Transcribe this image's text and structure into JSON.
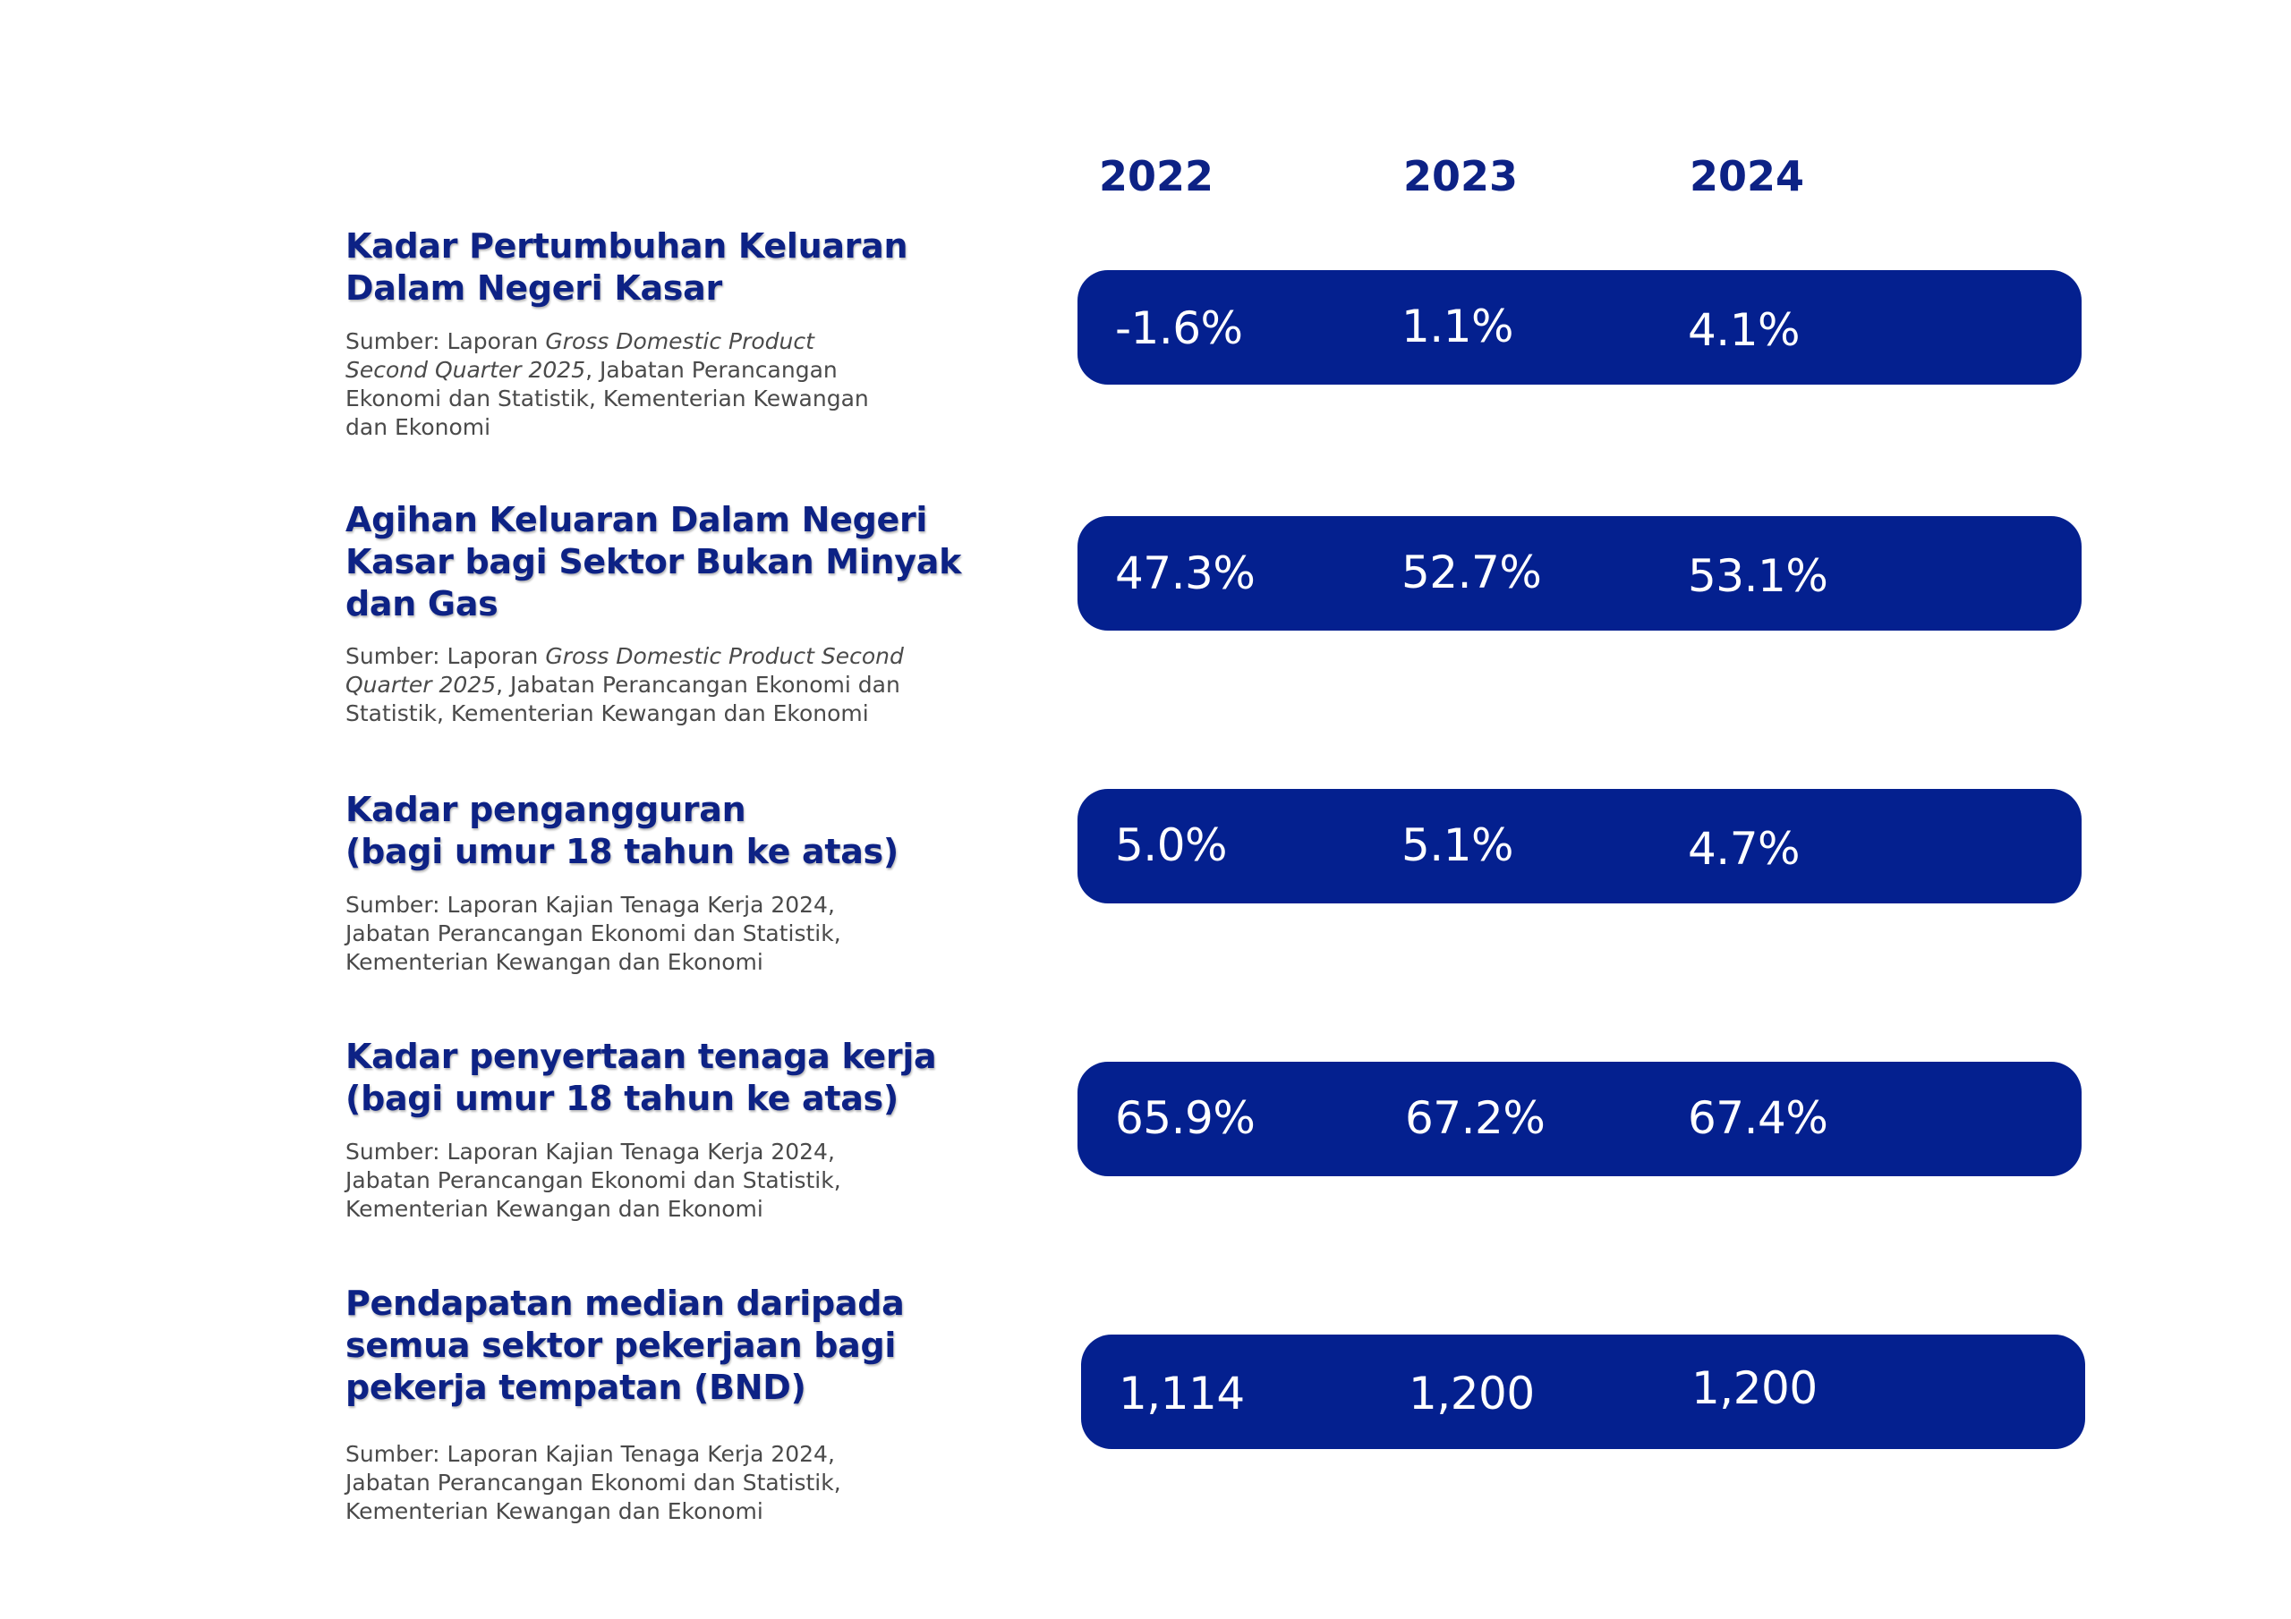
{
  "years": [
    "2022",
    "2023",
    "2024"
  ],
  "rows": [
    {
      "title_lines": [
        "Kadar Pertumbuhan Keluaran",
        "Dalam Negeri Kasar"
      ],
      "source_lines": [
        [
          "Sumber: Laporan ",
          "Gross Domestic Product",
          ""
        ],
        [
          "",
          "Second Quarter 2025",
          ", Jabatan Perancangan"
        ],
        [
          "Ekonomi dan Statistik, Kementerian Kewangan",
          "",
          ""
        ],
        [
          "dan Ekonomi",
          "",
          ""
        ]
      ],
      "values": [
        "-1.6%",
        "1.1%",
        "4.1%"
      ]
    },
    {
      "title_lines": [
        "Agihan Keluaran Dalam Negeri",
        "Kasar bagi Sektor Bukan Minyak",
        "dan Gas"
      ],
      "source_lines": [
        [
          "Sumber: Laporan ",
          "Gross Domestic Product Second",
          ""
        ],
        [
          "",
          "Quarter 2025",
          ", Jabatan Perancangan Ekonomi dan"
        ],
        [
          "Statistik, Kementerian Kewangan dan Ekonomi",
          "",
          ""
        ]
      ],
      "values": [
        "47.3%",
        "52.7%",
        "53.1%"
      ]
    },
    {
      "title_lines": [
        "Kadar pengangguran",
        "(bagi umur 18 tahun ke atas)"
      ],
      "source_lines": [
        [
          "Sumber: Laporan Kajian Tenaga Kerja 2024,",
          "",
          ""
        ],
        [
          "Jabatan Perancangan Ekonomi dan Statistik,",
          "",
          ""
        ],
        [
          "Kementerian Kewangan dan Ekonomi",
          "",
          ""
        ]
      ],
      "values": [
        "5.0%",
        "5.1%",
        "4.7%"
      ]
    },
    {
      "title_lines": [
        "Kadar penyertaan tenaga kerja",
        "(bagi umur 18 tahun ke atas)"
      ],
      "source_lines": [
        [
          "Sumber: Laporan Kajian Tenaga Kerja 2024,",
          "",
          ""
        ],
        [
          "Jabatan Perancangan Ekonomi dan Statistik,",
          "",
          ""
        ],
        [
          "Kementerian Kewangan dan Ekonomi",
          "",
          ""
        ]
      ],
      "values": [
        "65.9%",
        "67.2%",
        "67.4%"
      ]
    },
    {
      "title_lines": [
        "Pendapatan median daripada",
        "semua sektor pekerjaan bagi",
        "pekerja tempatan (BND)"
      ],
      "source_lines": [
        [
          "Sumber: Laporan Kajian Tenaga Kerja 2024,",
          "",
          ""
        ],
        [
          "Jabatan Perancangan Ekonomi dan Statistik,",
          "",
          ""
        ],
        [
          "Kementerian Kewangan dan Ekonomi",
          "",
          ""
        ]
      ],
      "values": [
        "1,114",
        "1,200",
        "1,200"
      ]
    }
  ]
}
